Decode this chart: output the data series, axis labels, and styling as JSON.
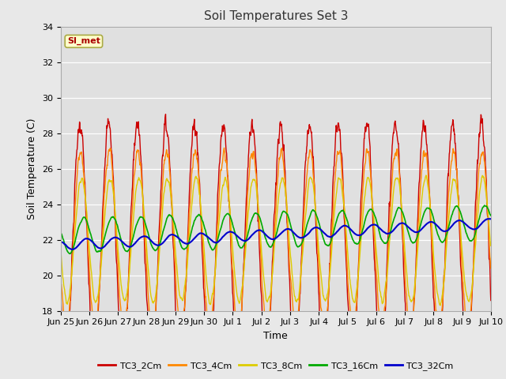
{
  "title": "Soil Temperatures Set 3",
  "xlabel": "Time",
  "ylabel": "Soil Temperature (C)",
  "ylim": [
    18,
    34
  ],
  "fig_bg_color": "#e8e8e8",
  "plot_bg_color": "#e0e0e0",
  "annotation_text": "SI_met",
  "annotation_color": "#aa0000",
  "annotation_bg": "#ffffcc",
  "annotation_border": "#aaaa44",
  "series_colors": [
    "#cc0000",
    "#ff8800",
    "#ddcc00",
    "#00aa00",
    "#0000cc"
  ],
  "series_labels": [
    "TC3_2Cm",
    "TC3_4Cm",
    "TC3_8Cm",
    "TC3_16Cm",
    "TC3_32Cm"
  ],
  "series_linewidths": [
    1.0,
    1.0,
    1.0,
    1.2,
    1.5
  ],
  "xtick_labels": [
    "Jun 25",
    "Jun 26",
    "Jun 27",
    "Jun 28",
    "Jun 29",
    "Jun 30",
    "Jul 1",
    "Jul 2",
    "Jul 3",
    "Jul 4",
    "Jul 5",
    "Jul 6",
    "Jul 7",
    "Jul 8",
    "Jul 9",
    "Jul 10"
  ],
  "n_days": 15,
  "samples_per_day": 96
}
